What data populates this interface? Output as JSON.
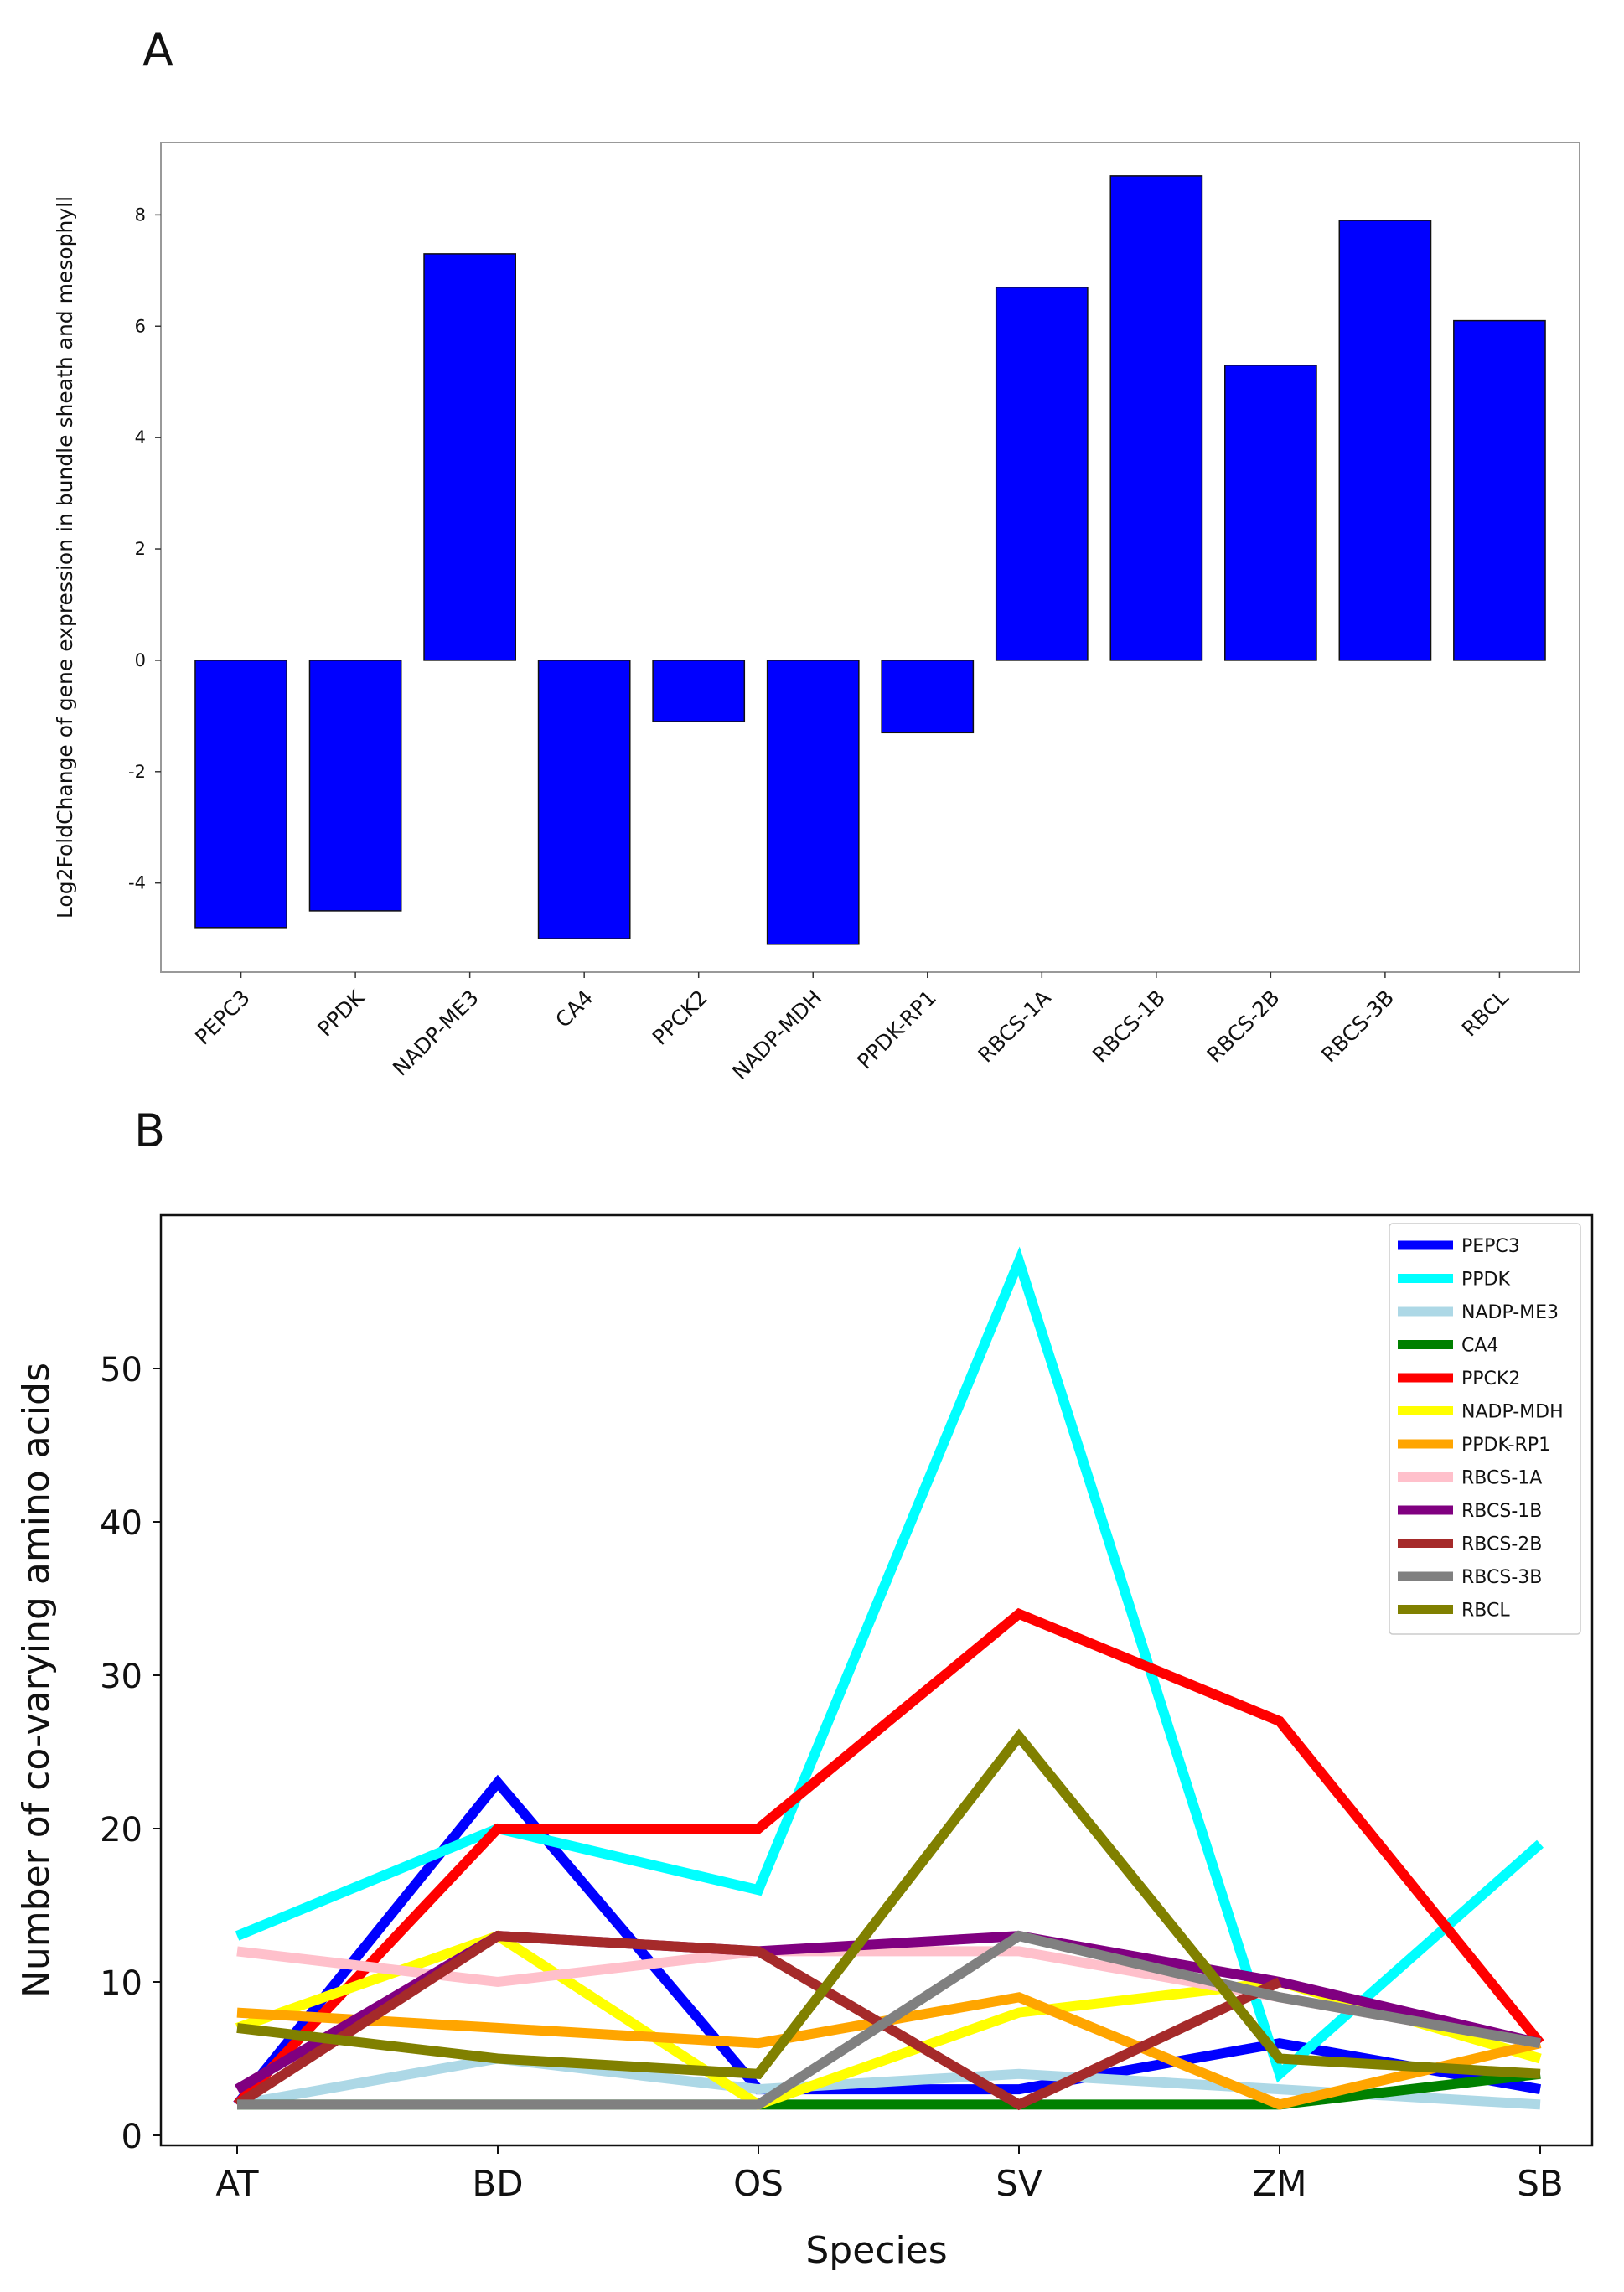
{
  "panel_labels": {
    "a": "A",
    "b": "B"
  },
  "chart_data": [
    {
      "type": "bar",
      "panel": "A",
      "title": "",
      "xlabel": "",
      "ylabel": "Log2FoldChange of gene expression in bundle sheath and mesophyll",
      "ylim": [
        -5.6,
        9.3
      ],
      "yticks": [
        -4,
        -2,
        0,
        2,
        4,
        6,
        8
      ],
      "bar_color": "#0000ff",
      "categories": [
        "PEPC3",
        "PPDK",
        "NADP-ME3",
        "CA4",
        "PPCK2",
        "NADP-MDH",
        "PPDK-RP1",
        "RBCS-1A",
        "RBCS-1B",
        "RBCS-2B",
        "RBCS-3B",
        "RBCL"
      ],
      "values": [
        -4.8,
        -4.5,
        7.3,
        -5.0,
        -1.1,
        -5.1,
        -1.3,
        6.7,
        8.7,
        5.3,
        7.9,
        6.1
      ]
    },
    {
      "type": "line",
      "panel": "B",
      "title": "",
      "xlabel": "Species",
      "ylabel": "Number of co-varying amino acids",
      "ylim": [
        0,
        60
      ],
      "yticks": [
        0,
        10,
        20,
        30,
        40,
        50
      ],
      "legend_position": "top-right",
      "categories": [
        "AT",
        "BD",
        "OS",
        "SV",
        "ZM",
        "SB"
      ],
      "series": [
        {
          "name": "PEPC3",
          "color": "#0000ff",
          "values": [
            2,
            23,
            3,
            3,
            6,
            3
          ]
        },
        {
          "name": "PPDK",
          "color": "#00ffff",
          "values": [
            13,
            20,
            16,
            57,
            4,
            19
          ]
        },
        {
          "name": "NADP-ME3",
          "color": "#add8e6",
          "values": [
            2,
            5,
            3,
            4,
            3,
            2
          ]
        },
        {
          "name": "CA4",
          "color": "#008000",
          "values": [
            2,
            2,
            2,
            2,
            2,
            4
          ]
        },
        {
          "name": "PPCK2",
          "color": "#ff0000",
          "values": [
            2,
            20,
            20,
            34,
            27,
            6
          ]
        },
        {
          "name": "NADP-MDH",
          "color": "#ffff00",
          "values": [
            7,
            13,
            2,
            8,
            10,
            5
          ]
        },
        {
          "name": "PPDK-RP1",
          "color": "#ffa500",
          "values": [
            8,
            7,
            6,
            9,
            2,
            6
          ]
        },
        {
          "name": "RBCS-1A",
          "color": "#ffc0cb",
          "values": [
            12,
            10,
            12,
            12,
            9,
            6
          ]
        },
        {
          "name": "RBCS-1B",
          "color": "#800080",
          "values": [
            3,
            13,
            12,
            13,
            10,
            6
          ]
        },
        {
          "name": "RBCS-2B",
          "color": "#a52a2a",
          "values": [
            2,
            13,
            12,
            2,
            10,
            null
          ]
        },
        {
          "name": "RBCS-3B",
          "color": "#808080",
          "values": [
            2,
            2,
            2,
            13,
            9,
            6
          ]
        },
        {
          "name": "RBCL",
          "color": "#808000",
          "values": [
            7,
            5,
            4,
            26,
            5,
            4
          ]
        }
      ]
    }
  ]
}
